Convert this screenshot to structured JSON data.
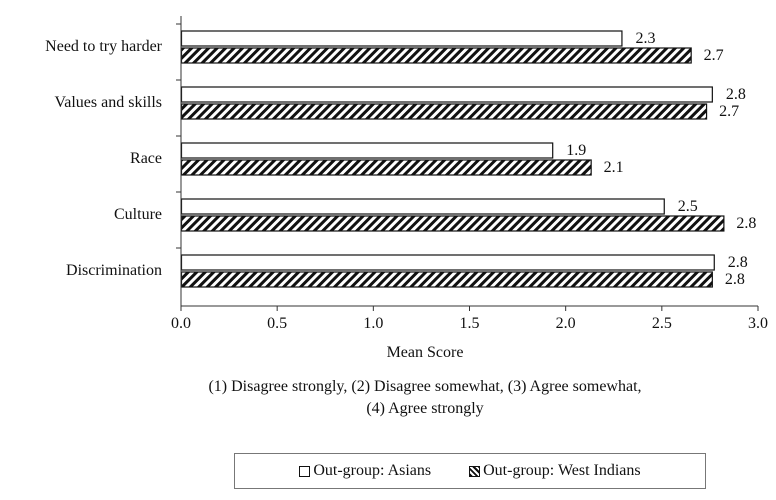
{
  "chart_data": {
    "type": "bar",
    "orientation": "horizontal",
    "categories": [
      "Need to try harder",
      "Values and skills",
      "Race",
      "Culture",
      "Discrimination"
    ],
    "series": [
      {
        "name": "Out-group: Asians",
        "values": [
          2.3,
          2.8,
          1.9,
          2.5,
          2.8
        ],
        "fill": "white"
      },
      {
        "name": "Out-group: West Indians",
        "values": [
          2.7,
          2.7,
          2.1,
          2.8,
          2.8
        ],
        "fill": "diagonal-hatch"
      }
    ],
    "bar_lengths": {
      "Out-group: Asians": [
        2.29,
        2.76,
        1.93,
        2.51,
        2.77
      ],
      "Out-group: West Indians": [
        2.65,
        2.73,
        2.13,
        2.82,
        2.76
      ]
    },
    "xlabel": "Mean Score",
    "xlim": [
      0,
      3
    ],
    "xticks": [
      "0.0",
      "0.5",
      "1.0",
      "1.5",
      "2.0",
      "2.5",
      "3.0"
    ],
    "notes": [
      "(1) Disagree strongly, (2) Disagree somewhat, (3) Agree somewhat,",
      "(4) Agree strongly"
    ],
    "legend_position": "bottom",
    "grid": false
  }
}
